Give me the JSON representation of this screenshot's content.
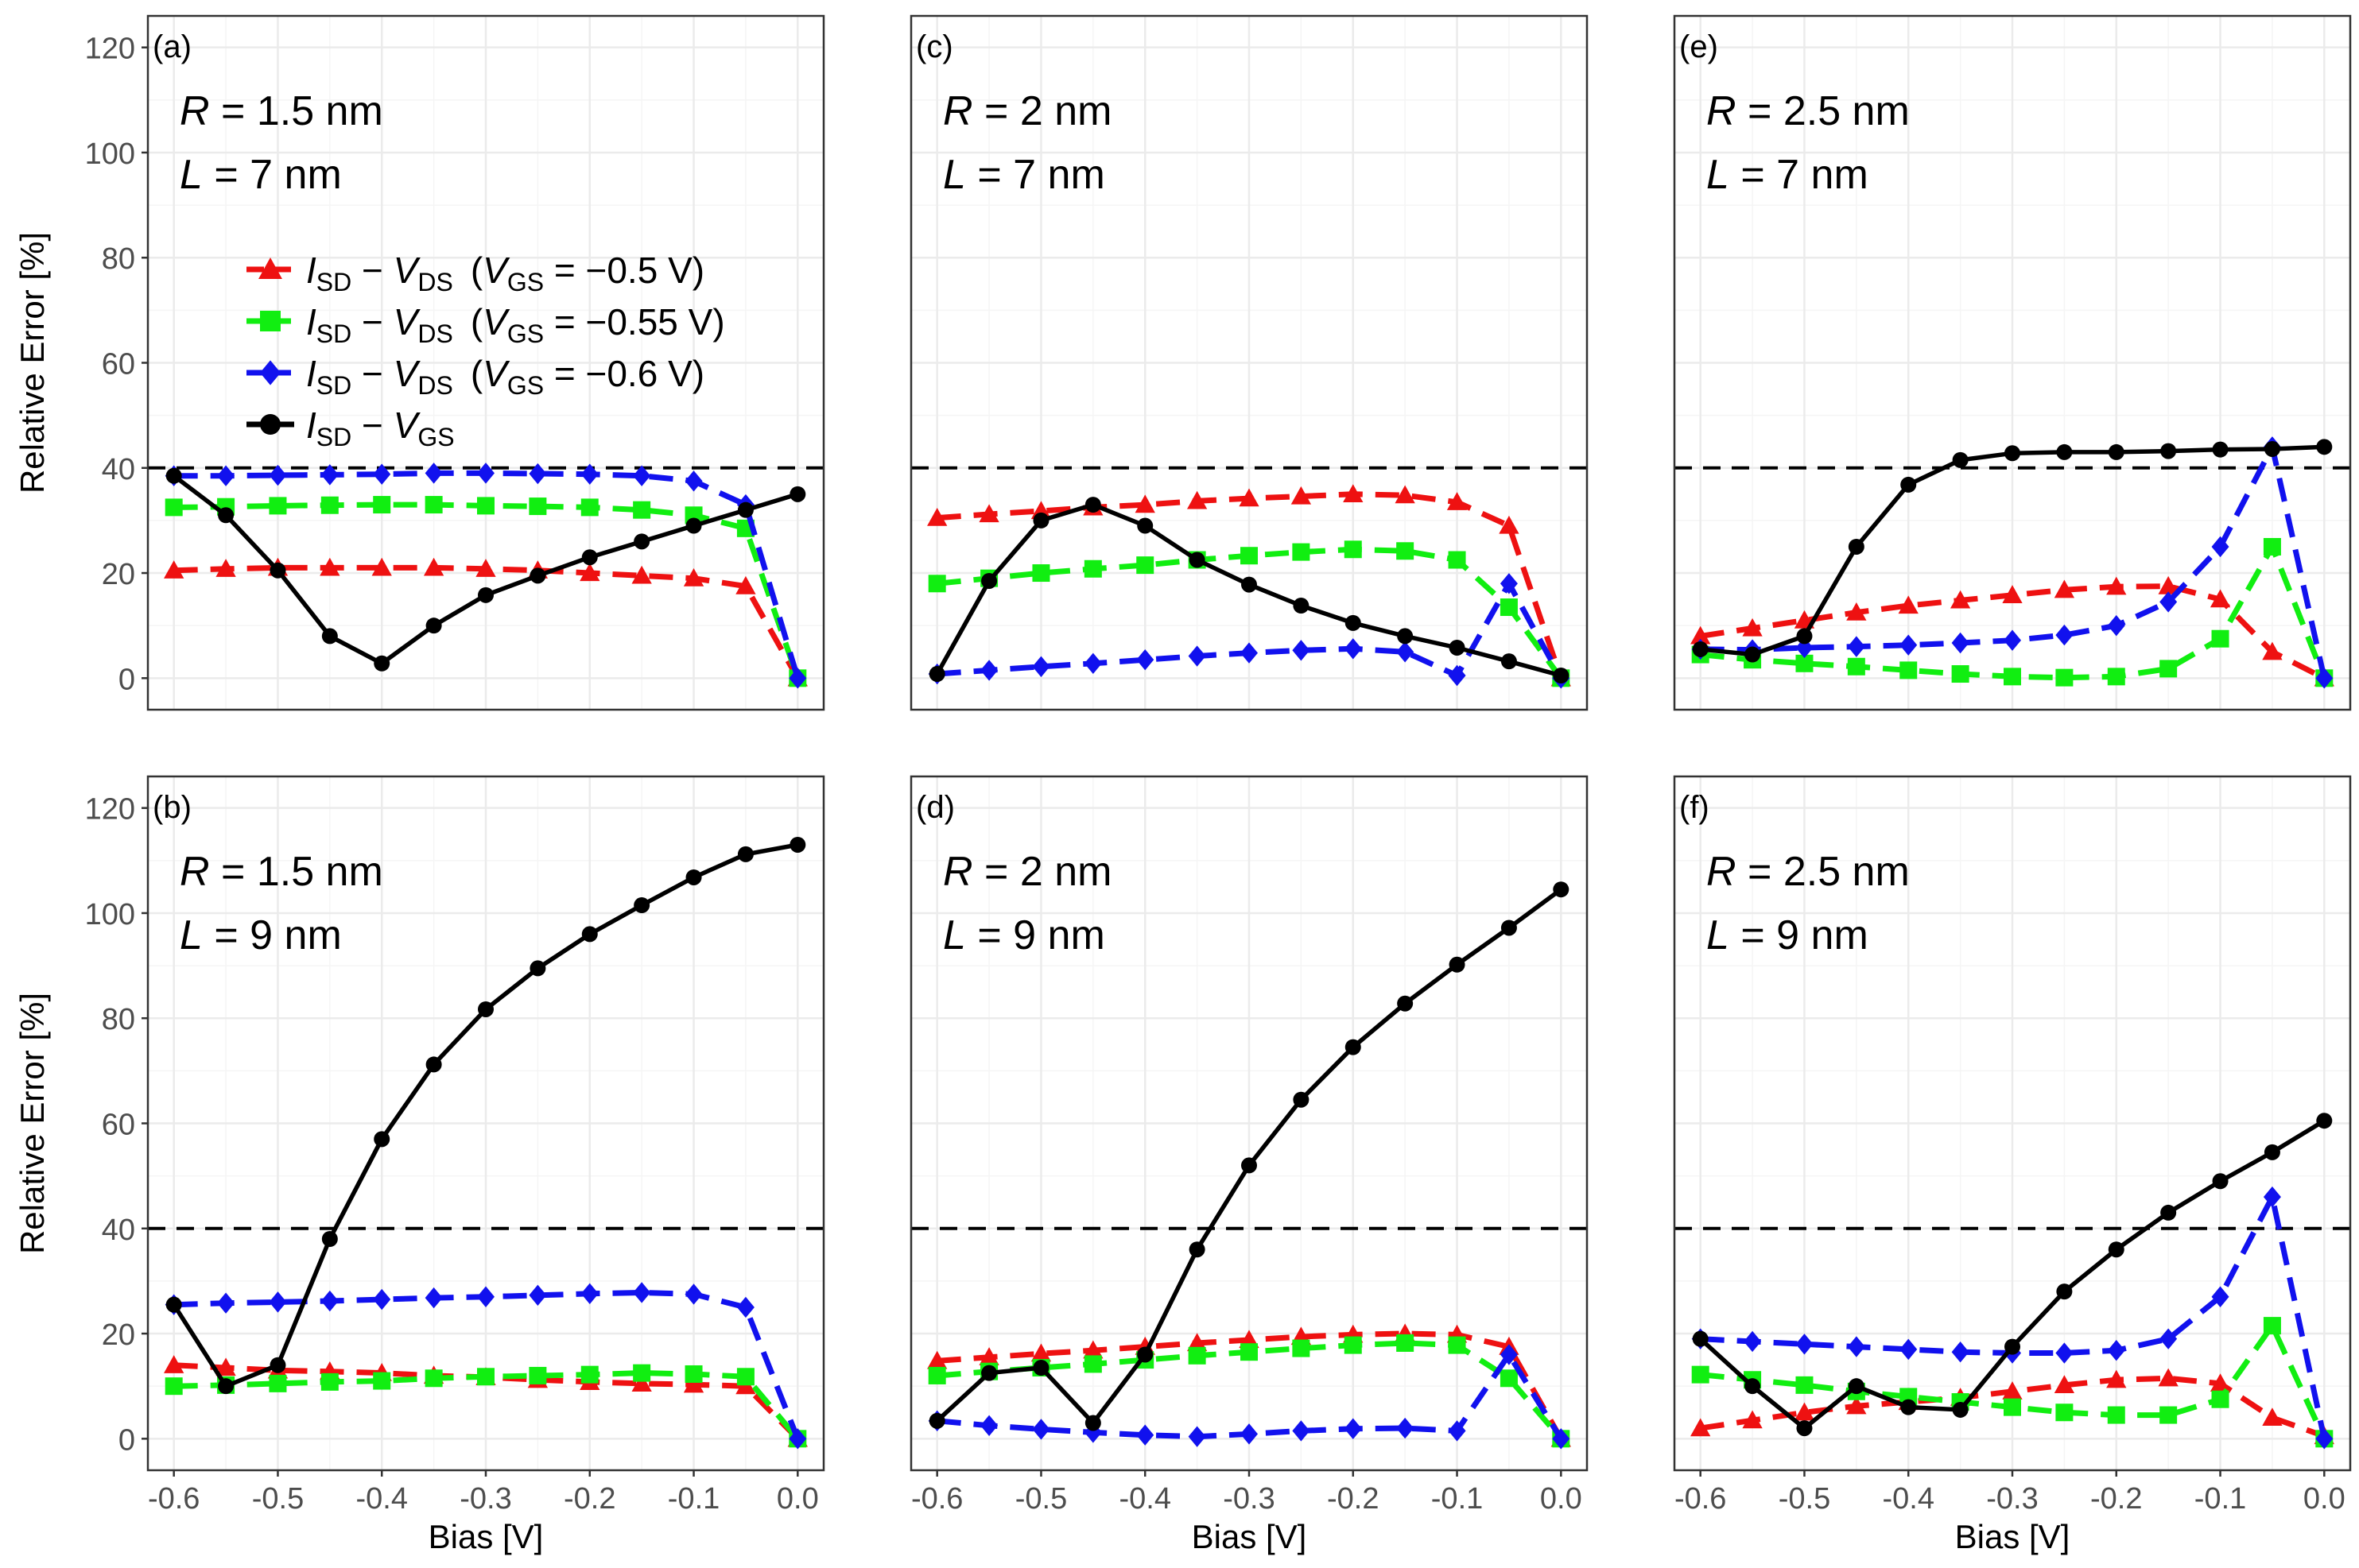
{
  "chart_data": {
    "type": "line",
    "x_values": [
      -0.6,
      -0.55,
      -0.5,
      -0.45,
      -0.4,
      -0.35,
      -0.3,
      -0.25,
      -0.2,
      -0.15,
      -0.1,
      -0.05,
      0.0
    ],
    "xticks": [
      -0.6,
      -0.5,
      -0.4,
      -0.3,
      -0.2,
      -0.1,
      0.0
    ],
    "xtick_labels": [
      "-0.6",
      "-0.5",
      "-0.4",
      "-0.3",
      "-0.2",
      "-0.1",
      "0.0"
    ],
    "yticks": [
      0,
      20,
      40,
      60,
      80,
      100,
      120
    ],
    "ytick_labels": [
      "0",
      "20",
      "40",
      "60",
      "80",
      "100",
      "120"
    ],
    "xlim": [
      -0.625,
      0.025
    ],
    "ylim": [
      -6,
      126
    ],
    "xlabel": "Bias [V]",
    "ylabel": "Relative Error [%]",
    "threshold": 40,
    "colors": {
      "red": "#ee1111",
      "green": "#11ee11",
      "blue": "#1111ee",
      "black": "#000000",
      "panel_border": "#333333",
      "grid": "#ebebeb",
      "tick_text": "#4d4d4d"
    },
    "legend": {
      "position": "inside panel (a)",
      "entries": [
        {
          "series": "red",
          "marker": "triangle",
          "color": "#ee1111",
          "prefix": "I",
          "sub1": "SD",
          "mid": " − ",
          "v": "V",
          "sub2": "DS",
          "cond_open": "(",
          "vgs": "V",
          "vgs_sub": "GS",
          "cond_close": " = −0.5 V)"
        },
        {
          "series": "green",
          "marker": "square",
          "color": "#11ee11",
          "prefix": "I",
          "sub1": "SD",
          "mid": " − ",
          "v": "V",
          "sub2": "DS",
          "cond_open": "(",
          "vgs": "V",
          "vgs_sub": "GS",
          "cond_close": " = −0.55 V)"
        },
        {
          "series": "blue",
          "marker": "diamond",
          "color": "#1111ee",
          "prefix": "I",
          "sub1": "SD",
          "mid": " − ",
          "v": "V",
          "sub2": "DS",
          "cond_open": "(",
          "vgs": "V",
          "vgs_sub": "GS",
          "cond_close": " = −0.6 V)"
        },
        {
          "series": "black",
          "marker": "circle",
          "color": "#000000",
          "prefix": "I",
          "sub1": "SD",
          "mid": " − ",
          "v": "V",
          "sub2": "GS",
          "cond_open": "",
          "vgs": "",
          "vgs_sub": "",
          "cond_close": ""
        }
      ]
    },
    "panels": [
      {
        "id": "(a)",
        "R_label": "R",
        "R_value": " = 1.5 nm",
        "L_label": "L",
        "L_value": " = 7 nm",
        "series": {
          "red": [
            20.5,
            20.8,
            21,
            21,
            21,
            21,
            20.8,
            20.5,
            20,
            19.5,
            19,
            17.5,
            0
          ],
          "green": [
            32.5,
            32.6,
            32.8,
            32.9,
            33,
            33,
            32.8,
            32.7,
            32.5,
            32,
            31,
            28.5,
            0
          ],
          "blue": [
            38.5,
            38.5,
            38.6,
            38.7,
            38.8,
            39,
            39,
            38.9,
            38.8,
            38.5,
            37.5,
            33,
            0
          ],
          "black": [
            38.5,
            31,
            20.5,
            8,
            2.8,
            10,
            15.8,
            19.5,
            23,
            26,
            29,
            32,
            35
          ]
        }
      },
      {
        "id": "(b)",
        "R_label": "R",
        "R_value": " = 1.5 nm",
        "L_label": "L",
        "L_value": " = 9 nm",
        "series": {
          "red": [
            14,
            13.5,
            13,
            12.8,
            12.5,
            12,
            11.7,
            11.2,
            10.8,
            10.5,
            10.3,
            10,
            0
          ],
          "green": [
            10,
            10.2,
            10.5,
            10.8,
            11,
            11.5,
            11.8,
            12,
            12.2,
            12.5,
            12.3,
            11.8,
            0
          ],
          "blue": [
            25.5,
            25.8,
            26,
            26.2,
            26.5,
            26.8,
            27,
            27.3,
            27.6,
            27.8,
            27.5,
            25,
            0
          ],
          "black": [
            25.5,
            10,
            14,
            38,
            57,
            71.2,
            81.7,
            89.5,
            96,
            101.5,
            106.8,
            111.2,
            113
          ]
        }
      },
      {
        "id": "(c)",
        "R_label": "R",
        "R_value": " = 2 nm",
        "L_label": "L",
        "L_value": " = 7 nm",
        "series": {
          "red": [
            30.5,
            31.2,
            31.8,
            32.5,
            33,
            33.7,
            34.2,
            34.6,
            35,
            34.8,
            33.5,
            29,
            0
          ],
          "green": [
            18,
            19,
            20,
            20.8,
            21.5,
            22.5,
            23.3,
            24,
            24.5,
            24.2,
            22.5,
            13.5,
            0
          ],
          "blue": [
            0.8,
            1.5,
            2.2,
            2.8,
            3.5,
            4.2,
            4.8,
            5.3,
            5.6,
            5,
            0.5,
            18,
            0
          ],
          "black": [
            0.8,
            18.5,
            30,
            33,
            29,
            22.5,
            17.8,
            13.8,
            10.5,
            8,
            5.8,
            3.2,
            0.5
          ]
        }
      },
      {
        "id": "(d)",
        "R_label": "R",
        "R_value": " = 2 nm",
        "L_label": "L",
        "L_value": " = 9 nm",
        "series": {
          "red": [
            14.8,
            15.5,
            16.2,
            16.8,
            17.5,
            18.2,
            18.8,
            19.4,
            19.8,
            20,
            19.8,
            17.5,
            0
          ],
          "green": [
            12,
            12.8,
            13.5,
            14.2,
            15,
            15.8,
            16.5,
            17.2,
            17.8,
            18.2,
            17.8,
            11.5,
            0
          ],
          "blue": [
            3.4,
            2.5,
            1.8,
            1.2,
            0.7,
            0.4,
            0.9,
            1.5,
            1.9,
            2,
            1.5,
            16,
            0
          ],
          "black": [
            3.4,
            12.5,
            13.5,
            3,
            16,
            36,
            52,
            64.5,
            74.5,
            82.8,
            90.2,
            97.2,
            104.5
          ]
        }
      },
      {
        "id": "(e)",
        "R_label": "R",
        "R_value": " = 2.5 nm",
        "L_label": "L",
        "L_value": " = 7 nm",
        "series": {
          "red": [
            8,
            9.5,
            11,
            12.5,
            13.8,
            14.8,
            15.8,
            16.8,
            17.4,
            17.5,
            15,
            5,
            0
          ],
          "green": [
            4.5,
            3.5,
            2.8,
            2.2,
            1.5,
            0.8,
            0.3,
            0.1,
            0.3,
            1.8,
            7.5,
            25,
            0
          ],
          "blue": [
            5.5,
            5.4,
            5.8,
            6,
            6.3,
            6.7,
            7.2,
            8.2,
            10,
            14.5,
            25,
            44,
            0
          ],
          "black": [
            5.5,
            4.5,
            8,
            25,
            36.8,
            41.5,
            42.8,
            43,
            43,
            43.2,
            43.5,
            43.6,
            44
          ]
        }
      },
      {
        "id": "(f)",
        "R_label": "R",
        "R_value": " = 2.5 nm",
        "L_label": "L",
        "L_value": " = 9 nm",
        "series": {
          "red": [
            2,
            3.5,
            5,
            6.2,
            7,
            7.8,
            9,
            10.2,
            11.2,
            11.5,
            10.5,
            4,
            0.5
          ],
          "green": [
            12.2,
            11.2,
            10.2,
            9,
            8,
            7,
            6,
            5,
            4.5,
            4.5,
            7.5,
            21.5,
            0
          ],
          "blue": [
            19,
            18.5,
            18,
            17.5,
            17,
            16.5,
            16.3,
            16.3,
            16.8,
            19,
            27,
            46,
            0
          ],
          "black": [
            19,
            10,
            2,
            10,
            6,
            5.5,
            17.5,
            28,
            36,
            43,
            49,
            54.5,
            60.5
          ]
        }
      }
    ]
  }
}
